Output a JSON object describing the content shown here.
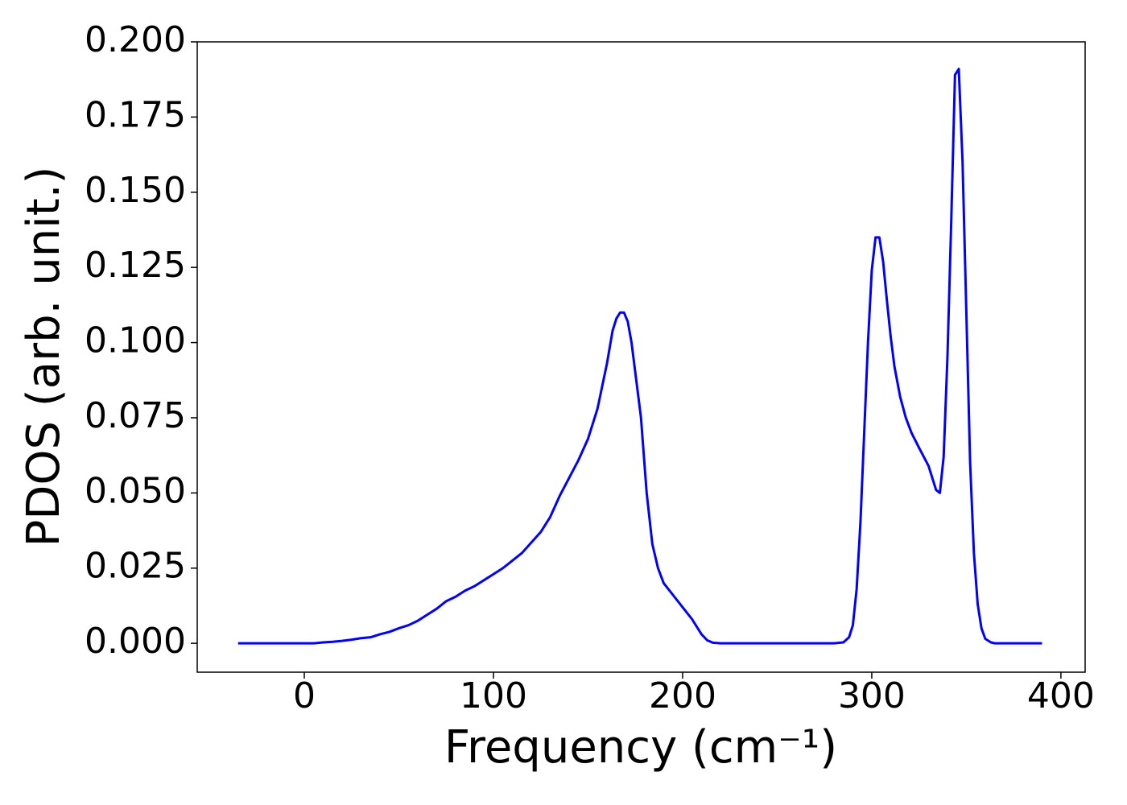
{
  "chart_data": {
    "type": "line",
    "xlabel": "Frequency (cm⁻¹)",
    "ylabel": "PDOS (arb. unit.)",
    "xlim": [
      -56.6,
      412.8
    ],
    "ylim": [
      -0.0096,
      0.2
    ],
    "xticks": [
      0,
      100,
      200,
      300,
      400
    ],
    "yticks": [
      {
        "value": 0,
        "label": "0.000"
      },
      {
        "value": 0.025,
        "label": "0.025"
      },
      {
        "value": 0.05,
        "label": "0.050"
      },
      {
        "value": 0.075,
        "label": "0.075"
      },
      {
        "value": 0.1,
        "label": "0.100"
      },
      {
        "value": 0.125,
        "label": "0.125"
      },
      {
        "value": 0.15,
        "label": "0.150"
      },
      {
        "value": 0.175,
        "label": "0.175"
      },
      {
        "value": 0.2,
        "label": "0.200"
      }
    ],
    "color": "#0000ff",
    "x": [
      -35,
      -30,
      -25,
      -20,
      -15,
      -10,
      -5,
      0,
      5,
      10,
      15,
      20,
      25,
      30,
      35,
      40,
      45,
      50,
      55,
      60,
      65,
      70,
      75,
      80,
      85,
      90,
      95,
      100,
      105,
      110,
      115,
      120,
      125,
      130,
      135,
      140,
      145,
      150,
      155,
      160,
      163,
      165,
      167,
      169,
      171,
      173,
      175,
      178,
      181,
      184,
      187,
      190,
      195,
      200,
      205,
      210,
      213,
      216,
      220,
      230,
      240,
      250,
      260,
      270,
      280,
      285,
      288,
      290,
      292,
      294,
      296,
      298,
      300,
      302,
      304,
      306,
      308,
      310,
      312,
      315,
      318,
      321,
      325,
      330,
      334,
      336,
      338,
      340,
      342,
      344,
      346,
      348,
      350,
      352,
      354,
      356,
      358,
      360,
      363,
      365,
      370,
      380,
      390
    ],
    "values": [
      0,
      0,
      0,
      0,
      0,
      0,
      0,
      0,
      0,
      0.0003,
      0.0005,
      0.0008,
      0.0012,
      0.0017,
      0.002,
      0.003,
      0.0038,
      0.005,
      0.006,
      0.0075,
      0.0095,
      0.0115,
      0.014,
      0.0155,
      0.0175,
      0.019,
      0.021,
      0.023,
      0.025,
      0.0275,
      0.03,
      0.0335,
      0.037,
      0.042,
      0.049,
      0.055,
      0.061,
      0.068,
      0.078,
      0.093,
      0.104,
      0.108,
      0.11,
      0.11,
      0.107,
      0.1,
      0.09,
      0.075,
      0.05,
      0.033,
      0.025,
      0.02,
      0.016,
      0.012,
      0.008,
      0.003,
      0.001,
      0.0002,
      0,
      0,
      0,
      0,
      0,
      0,
      0,
      0.0003,
      0.002,
      0.006,
      0.018,
      0.04,
      0.07,
      0.1,
      0.124,
      0.135,
      0.135,
      0.127,
      0.114,
      0.102,
      0.092,
      0.082,
      0.075,
      0.07,
      0.065,
      0.059,
      0.051,
      0.05,
      0.062,
      0.095,
      0.14,
      0.189,
      0.191,
      0.16,
      0.11,
      0.06,
      0.03,
      0.013,
      0.005,
      0.0015,
      0.0003,
      0,
      0,
      0,
      0
    ]
  }
}
